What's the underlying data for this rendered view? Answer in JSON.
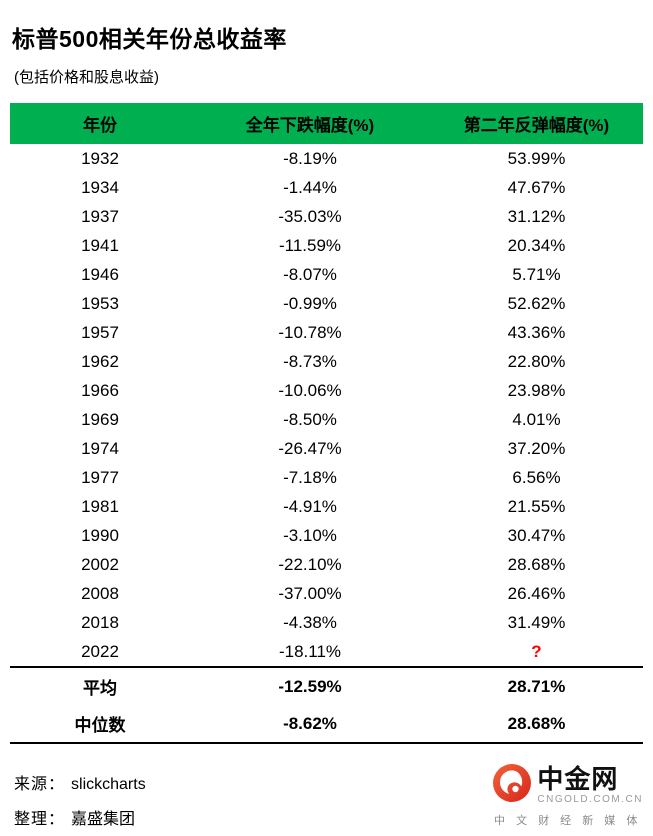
{
  "title": "标普500相关年份总收益率",
  "subtitle": "(包括价格和股息收益)",
  "colors": {
    "header_green": "#00B050",
    "question_red": "#FF0000",
    "logo_red": "#E8432D"
  },
  "table": {
    "headers": [
      "年份",
      "全年下跌幅度(%)",
      "第二年反弹幅度(%)"
    ],
    "rows": [
      {
        "year": "1932",
        "decline": "-8.19%",
        "rebound": "53.99%"
      },
      {
        "year": "1934",
        "decline": "-1.44%",
        "rebound": "47.67%"
      },
      {
        "year": "1937",
        "decline": "-35.03%",
        "rebound": "31.12%"
      },
      {
        "year": "1941",
        "decline": "-11.59%",
        "rebound": "20.34%"
      },
      {
        "year": "1946",
        "decline": "-8.07%",
        "rebound": "5.71%"
      },
      {
        "year": "1953",
        "decline": "-0.99%",
        "rebound": "52.62%"
      },
      {
        "year": "1957",
        "decline": "-10.78%",
        "rebound": "43.36%"
      },
      {
        "year": "1962",
        "decline": "-8.73%",
        "rebound": "22.80%"
      },
      {
        "year": "1966",
        "decline": "-10.06%",
        "rebound": "23.98%"
      },
      {
        "year": "1969",
        "decline": "-8.50%",
        "rebound": "4.01%"
      },
      {
        "year": "1974",
        "decline": "-26.47%",
        "rebound": "37.20%"
      },
      {
        "year": "1977",
        "decline": "-7.18%",
        "rebound": "6.56%"
      },
      {
        "year": "1981",
        "decline": "-4.91%",
        "rebound": "21.55%"
      },
      {
        "year": "1990",
        "decline": "-3.10%",
        "rebound": "30.47%"
      },
      {
        "year": "2002",
        "decline": "-22.10%",
        "rebound": "28.68%"
      },
      {
        "year": "2008",
        "decline": "-37.00%",
        "rebound": "26.46%"
      },
      {
        "year": "2018",
        "decline": "-4.38%",
        "rebound": "31.49%"
      },
      {
        "year": "2022",
        "decline": "-18.11%",
        "rebound": "?"
      }
    ],
    "summary": [
      {
        "label": "平均",
        "decline": "-12.59%",
        "rebound": "28.71%"
      },
      {
        "label": "中位数",
        "decline": "-8.62%",
        "rebound": "28.68%"
      }
    ]
  },
  "footer": {
    "source_label": "来源：",
    "source_value": "slickcharts",
    "compiler_label": "整理：",
    "compiler_value": "嘉盛集团"
  },
  "logo": {
    "name": "中金网",
    "domain": "CNGOLD.COM.CN",
    "tagline": "中 文 财 经 新 媒 体"
  },
  "chart_data": {
    "type": "table",
    "title": "标普500相关年份总收益率",
    "subtitle": "(包括价格和股息收益)",
    "columns": [
      "年份",
      "全年下跌幅度(%)",
      "第二年反弹幅度(%)"
    ],
    "rows": [
      [
        1932,
        -8.19,
        53.99
      ],
      [
        1934,
        -1.44,
        47.67
      ],
      [
        1937,
        -35.03,
        31.12
      ],
      [
        1941,
        -11.59,
        20.34
      ],
      [
        1946,
        -8.07,
        5.71
      ],
      [
        1953,
        -0.99,
        52.62
      ],
      [
        1957,
        -10.78,
        43.36
      ],
      [
        1962,
        -8.73,
        22.8
      ],
      [
        1966,
        -10.06,
        23.98
      ],
      [
        1969,
        -8.5,
        4.01
      ],
      [
        1974,
        -26.47,
        37.2
      ],
      [
        1977,
        -7.18,
        6.56
      ],
      [
        1981,
        -4.91,
        21.55
      ],
      [
        1990,
        -3.1,
        30.47
      ],
      [
        2002,
        -22.1,
        28.68
      ],
      [
        2008,
        -37.0,
        26.46
      ],
      [
        2018,
        -4.38,
        31.49
      ],
      [
        2022,
        -18.11,
        null
      ]
    ],
    "summary_rows": [
      [
        "平均",
        -12.59,
        28.71
      ],
      [
        "中位数",
        -8.62,
        28.68
      ]
    ]
  }
}
